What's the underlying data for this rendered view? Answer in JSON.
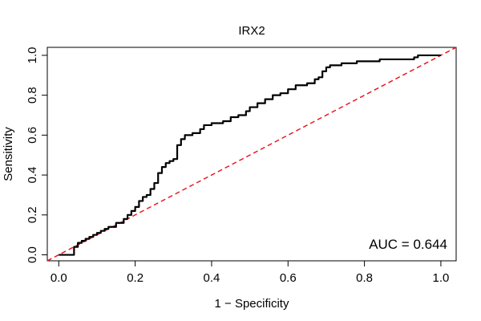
{
  "chart_data": {
    "type": "line",
    "title": "IRX2",
    "xlabel": "1 − Specificity",
    "ylabel": "Sensitivity",
    "xlim": [
      -0.03,
      1.04
    ],
    "ylim": [
      -0.03,
      1.04
    ],
    "x_ticks": [
      0.0,
      0.2,
      0.4,
      0.6,
      0.8,
      1.0
    ],
    "x_tick_labels": [
      "0.0",
      "0.2",
      "0.4",
      "0.6",
      "0.8",
      "1.0"
    ],
    "y_ticks": [
      0.0,
      0.2,
      0.4,
      0.6,
      0.8,
      1.0
    ],
    "y_tick_labels": [
      "0.0",
      "0.2",
      "0.4",
      "0.6",
      "0.8",
      "1.0"
    ],
    "grid": false,
    "annotation": "AUC = 0.644",
    "series": [
      {
        "values_x": [
          0.0,
          0.02,
          0.04,
          0.05,
          0.06,
          0.07,
          0.08,
          0.09,
          0.1,
          0.11,
          0.12,
          0.13,
          0.15,
          0.17,
          0.18,
          0.19,
          0.2,
          0.21,
          0.22,
          0.23,
          0.24,
          0.25,
          0.26,
          0.27,
          0.28,
          0.29,
          0.3,
          0.31,
          0.32,
          0.33,
          0.35,
          0.37,
          0.38,
          0.4,
          0.43,
          0.45,
          0.47,
          0.49,
          0.5,
          0.52,
          0.54,
          0.56,
          0.58,
          0.6,
          0.62,
          0.65,
          0.67,
          0.68,
          0.69,
          0.7,
          0.71,
          0.74,
          0.78,
          0.8,
          0.82,
          0.84,
          0.87,
          0.9,
          0.93,
          0.94,
          0.97,
          1.0
        ],
        "values_y": [
          0.0,
          0.0,
          0.04,
          0.06,
          0.07,
          0.08,
          0.09,
          0.1,
          0.11,
          0.12,
          0.13,
          0.14,
          0.16,
          0.18,
          0.2,
          0.22,
          0.24,
          0.27,
          0.29,
          0.3,
          0.33,
          0.36,
          0.41,
          0.44,
          0.46,
          0.47,
          0.48,
          0.55,
          0.58,
          0.6,
          0.61,
          0.63,
          0.65,
          0.66,
          0.67,
          0.69,
          0.7,
          0.72,
          0.74,
          0.76,
          0.78,
          0.8,
          0.81,
          0.83,
          0.85,
          0.86,
          0.88,
          0.89,
          0.92,
          0.94,
          0.95,
          0.96,
          0.97,
          0.97,
          0.97,
          0.98,
          0.98,
          0.98,
          0.99,
          1.0,
          1.0,
          1.0
        ],
        "color": "#000000"
      },
      {
        "values_x": [
          -0.03,
          1.04
        ],
        "values_y": [
          -0.03,
          1.04
        ],
        "color": "#e8141d",
        "style": "dashed"
      }
    ]
  }
}
